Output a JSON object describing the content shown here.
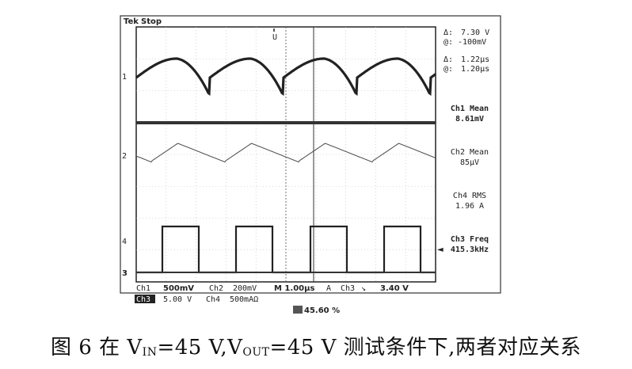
{
  "scope": {
    "brand": "Tek",
    "run_state": "Stop",
    "trigger_marker": "U",
    "cursor_readouts": {
      "delta_v_symbol": "Δ:",
      "delta_v": "7.30 V",
      "abs_v_symbol": "@:",
      "abs_v": "-100mV",
      "delta_t_symbol": "Δ:",
      "delta_t": "1.22µs",
      "abs_t_symbol": "@:",
      "abs_t": "1.20µs"
    },
    "measurements": [
      {
        "label": "Ch1 Mean",
        "value": "8.61mV"
      },
      {
        "label": "Ch2 Mean",
        "value": "85µV"
      },
      {
        "label": "Ch4 RMS",
        "value": "1.96 A"
      },
      {
        "label": "Ch3 Freq",
        "value": "415.3kHz"
      }
    ],
    "channel_markers": [
      "1",
      "2",
      "4",
      "3"
    ],
    "status_row1": {
      "ch1": "Ch1",
      "ch1_scale": "500mV",
      "ch2": "Ch2",
      "ch2_scale": "200mV",
      "timebase": "M 1.00µs",
      "trig_mode": "A",
      "trig_src": "Ch3",
      "trig_slope": "↘",
      "trig_level": "3.40 V"
    },
    "status_row2": {
      "ch3_tag": "Ch3",
      "ch3_scale": "5.00 V",
      "ch4": "Ch4",
      "ch4_scale": "500mAΩ"
    },
    "trigger_pos": "45.60 %"
  },
  "caption": {
    "prefix": "图 6  在 V",
    "sub1": "IN",
    "mid1": "=45 V,V",
    "sub2": "OUT",
    "mid2": "=45 V 测试条件下,两者对应关系"
  }
}
